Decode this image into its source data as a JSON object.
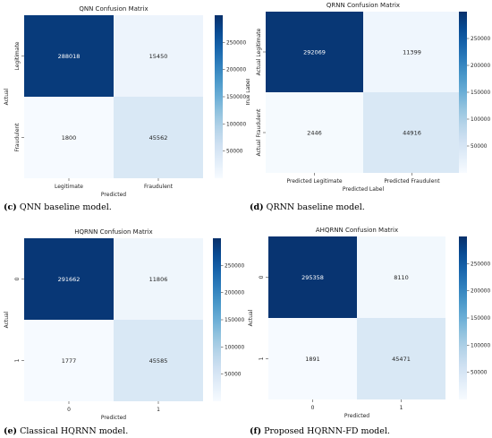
{
  "chart_data": [
    {
      "type": "heatmap",
      "title": "QNN Confusion Matrix",
      "xlabel": "Predicted",
      "ylabel": "Actual",
      "x_categories": [
        "Legitimate",
        "Fraudulent"
      ],
      "y_categories": [
        "Legitimate",
        "Fraudulent"
      ],
      "values": [
        [
          288018,
          15450
        ],
        [
          1800,
          45562
        ]
      ],
      "colorbar_ticks": [
        250000,
        200000,
        150000,
        100000,
        50000
      ],
      "caption_tag": "(c)",
      "caption_text": "QNN baseline model."
    },
    {
      "type": "heatmap",
      "title": "QRNN Confusion Matrix",
      "xlabel": "Predicted Label",
      "ylabel": "True Label",
      "x_categories": [
        "Predicted Legitimate",
        "Predicted Fraudulent"
      ],
      "y_categories": [
        "Actual Legitimate",
        "Actual Fraudulent"
      ],
      "values": [
        [
          292069,
          11399
        ],
        [
          2446,
          44916
        ]
      ],
      "colorbar_ticks": [
        250000,
        200000,
        150000,
        100000,
        50000
      ],
      "caption_tag": "(d)",
      "caption_text": "QRNN baseline model."
    },
    {
      "type": "heatmap",
      "title": "HQRNN Confusion Matrix",
      "xlabel": "Predicted",
      "ylabel": "Actual",
      "x_categories": [
        "0",
        "1"
      ],
      "y_categories": [
        "0",
        "1"
      ],
      "values": [
        [
          291662,
          11806
        ],
        [
          1777,
          45585
        ]
      ],
      "colorbar_ticks": [
        250000,
        200000,
        150000,
        100000,
        50000
      ],
      "caption_tag": "(e)",
      "caption_text": "Classical HQRNN model."
    },
    {
      "type": "heatmap",
      "title": "AHQRNN Confusion Matrix",
      "xlabel": "Predicted",
      "ylabel": "Actual",
      "x_categories": [
        "0",
        "1"
      ],
      "y_categories": [
        "0",
        "1"
      ],
      "values": [
        [
          295358,
          8110
        ],
        [
          1891,
          45471
        ]
      ],
      "colorbar_ticks": [
        250000,
        200000,
        150000,
        100000,
        50000
      ],
      "caption_tag": "(f)",
      "caption_text": "Proposed HQRNN-FD model."
    }
  ]
}
